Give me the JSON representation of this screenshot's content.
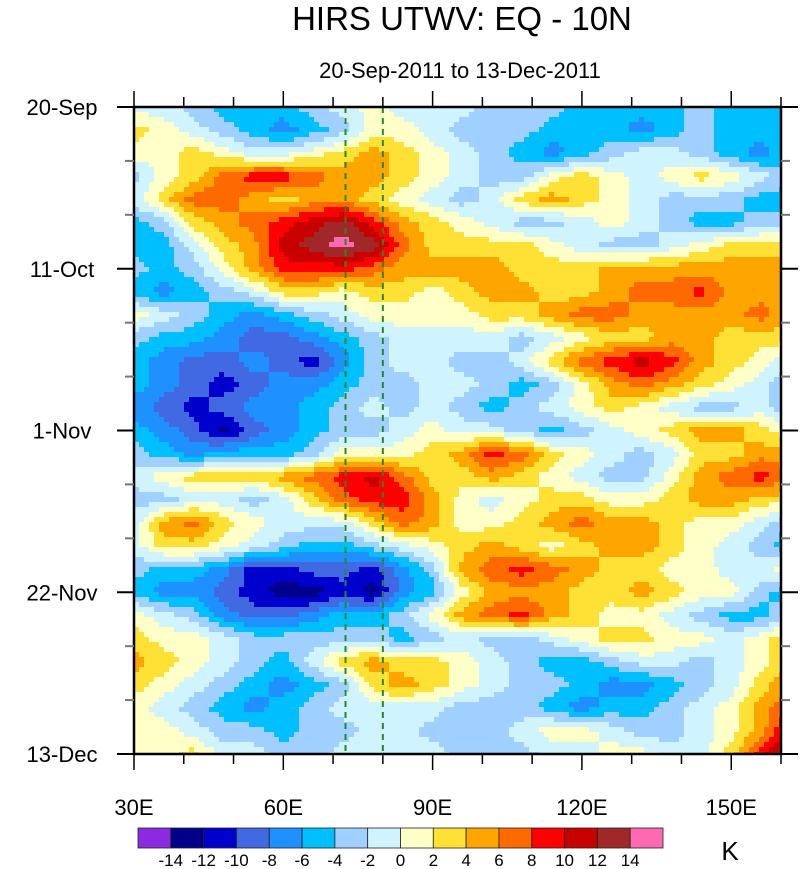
{
  "chart_data": {
    "type": "heatmap",
    "title": "HIRS UTWV: EQ - 10N",
    "subtitle": "20-Sep-2011 to 13-Dec-2011",
    "xlabel": "",
    "ylabel": "",
    "x_axis": {
      "range": [
        30,
        160
      ],
      "unit": "degrees east",
      "major_ticks": [
        30,
        60,
        90,
        120,
        150
      ],
      "tick_labels": [
        "30E",
        "60E",
        "90E",
        "120E",
        "150E"
      ],
      "minor_step": 10
    },
    "y_axis": {
      "range_days": [
        0,
        84
      ],
      "direction": "top-to-bottom",
      "major_ticks_days": [
        0,
        21,
        42,
        63,
        84
      ],
      "tick_labels": [
        "20-Sep",
        "11-Oct",
        "1-Nov",
        "22-Nov",
        "13-Dec"
      ],
      "minor_step_days": 7
    },
    "reference_lines": [
      {
        "lon": 72.5,
        "style": "dashed",
        "color": "#228B22"
      },
      {
        "lon": 80,
        "style": "dashed",
        "color": "#228B22"
      }
    ],
    "colorbar": {
      "placement": "bottom",
      "unit": "K",
      "levels": [
        -14,
        -12,
        -10,
        -8,
        -6,
        -4,
        -2,
        0,
        2,
        4,
        6,
        8,
        10,
        12,
        14
      ],
      "level_labels": [
        "-14",
        "-12",
        "-10",
        "-8",
        "-6",
        "-4",
        "-2",
        "0",
        "2",
        "4",
        "6",
        "8",
        "10",
        "12",
        "14"
      ],
      "colors": [
        "#8a2be2",
        "#00008b",
        "#0000cd",
        "#4169e1",
        "#1e90ff",
        "#00bfff",
        "#a0d0ff",
        "#d0f4ff",
        "#ffffc8",
        "#ffe135",
        "#ffa500",
        "#ff6a00",
        "#ff0000",
        "#c80000",
        "#a02828",
        "#ff69b4"
      ]
    },
    "grid": {
      "lons": [
        30,
        36,
        42,
        48,
        54,
        60,
        66,
        72,
        78,
        84,
        90,
        96,
        102,
        108,
        114,
        120,
        126,
        132,
        138,
        144,
        150,
        156,
        160
      ],
      "days": [
        0,
        3,
        6,
        9,
        12,
        15,
        18,
        21,
        24,
        27,
        30,
        33,
        36,
        39,
        42,
        45,
        48,
        51,
        54,
        57,
        60,
        63,
        66,
        69,
        72,
        75,
        78,
        81,
        84
      ],
      "values": [
        [
          -1,
          -1,
          -3,
          -5,
          -5,
          -5,
          -3,
          -1,
          1,
          -1,
          -1,
          -1,
          -3,
          -3,
          -3,
          -5,
          -5,
          -5,
          -5,
          -3,
          -5,
          -5,
          -5
        ],
        [
          3,
          1,
          -1,
          -3,
          -5,
          -7,
          -5,
          -3,
          1,
          1,
          -1,
          -3,
          -3,
          -3,
          -5,
          -5,
          -5,
          -7,
          -5,
          -3,
          -5,
          -5,
          -5
        ],
        [
          1,
          1,
          3,
          1,
          -1,
          -1,
          1,
          3,
          5,
          3,
          1,
          -1,
          -3,
          -5,
          -7,
          -5,
          -3,
          -1,
          -1,
          -3,
          -5,
          -7,
          -5
        ],
        [
          -3,
          1,
          3,
          7,
          9,
          9,
          7,
          5,
          5,
          3,
          1,
          -1,
          -3,
          -3,
          1,
          3,
          1,
          -1,
          1,
          3,
          1,
          -1,
          -3
        ],
        [
          -1,
          3,
          7,
          7,
          5,
          3,
          5,
          5,
          3,
          1,
          -1,
          -3,
          -1,
          3,
          5,
          3,
          1,
          -1,
          -3,
          -3,
          -3,
          -5,
          -5
        ],
        [
          -5,
          -3,
          3,
          5,
          7,
          9,
          11,
          13,
          9,
          5,
          3,
          1,
          -1,
          -3,
          -3,
          -1,
          1,
          -1,
          -3,
          -5,
          -5,
          -3,
          -3
        ],
        [
          -5,
          -5,
          -1,
          3,
          5,
          11,
          13,
          15,
          13,
          7,
          3,
          3,
          3,
          3,
          1,
          -1,
          -3,
          -3,
          -1,
          1,
          3,
          3,
          3
        ],
        [
          -3,
          -5,
          -3,
          1,
          5,
          9,
          9,
          9,
          7,
          5,
          5,
          5,
          5,
          3,
          3,
          3,
          5,
          5,
          5,
          5,
          5,
          5,
          5
        ],
        [
          -5,
          -7,
          -5,
          -3,
          -1,
          3,
          3,
          1,
          3,
          3,
          1,
          3,
          5,
          5,
          3,
          3,
          5,
          7,
          7,
          9,
          5,
          5,
          5
        ],
        [
          1,
          -1,
          -3,
          -5,
          -7,
          -5,
          -3,
          -1,
          1,
          1,
          1,
          1,
          3,
          3,
          5,
          7,
          7,
          5,
          5,
          5,
          5,
          7,
          5
        ],
        [
          -3,
          -5,
          -5,
          -7,
          -9,
          -9,
          -7,
          -5,
          -3,
          -1,
          -1,
          -1,
          -1,
          -3,
          -1,
          1,
          3,
          3,
          5,
          5,
          3,
          3,
          3
        ],
        [
          -5,
          -7,
          -9,
          -9,
          -7,
          -9,
          -11,
          -7,
          -3,
          -1,
          -1,
          -3,
          -3,
          -1,
          3,
          7,
          9,
          11,
          9,
          5,
          3,
          1,
          -1
        ],
        [
          -5,
          -7,
          -9,
          -11,
          -9,
          -7,
          -7,
          -5,
          -3,
          -3,
          -1,
          -1,
          -3,
          -5,
          -3,
          1,
          5,
          7,
          5,
          3,
          1,
          -1,
          -3
        ],
        [
          -7,
          -9,
          -11,
          -9,
          -7,
          -7,
          -5,
          -3,
          -1,
          -3,
          -1,
          -3,
          -5,
          -3,
          -1,
          1,
          3,
          1,
          -1,
          -3,
          -3,
          -1,
          -3
        ],
        [
          -5,
          -7,
          -9,
          -13,
          -9,
          -7,
          -5,
          -3,
          -3,
          -1,
          1,
          -1,
          -1,
          -3,
          -5,
          -3,
          -1,
          1,
          3,
          5,
          5,
          3,
          1
        ],
        [
          -3,
          -5,
          -7,
          -5,
          -5,
          -5,
          -3,
          1,
          1,
          1,
          3,
          5,
          9,
          7,
          3,
          1,
          -1,
          -3,
          -1,
          3,
          3,
          5,
          5
        ],
        [
          -1,
          1,
          3,
          3,
          3,
          5,
          7,
          9,
          11,
          7,
          3,
          3,
          5,
          3,
          1,
          -1,
          -3,
          -3,
          1,
          5,
          7,
          9,
          7
        ],
        [
          -3,
          -3,
          -1,
          -1,
          -3,
          -1,
          3,
          7,
          9,
          9,
          5,
          1,
          -1,
          1,
          3,
          3,
          1,
          1,
          3,
          5,
          5,
          3,
          3
        ],
        [
          -1,
          5,
          7,
          3,
          1,
          -1,
          -1,
          -1,
          3,
          7,
          5,
          1,
          1,
          3,
          5,
          7,
          5,
          5,
          3,
          1,
          1,
          -1,
          -3
        ],
        [
          -1,
          3,
          3,
          1,
          -1,
          -3,
          -5,
          -5,
          -3,
          -1,
          1,
          3,
          5,
          3,
          1,
          3,
          5,
          5,
          3,
          1,
          -1,
          -3,
          -5
        ],
        [
          -3,
          -5,
          -5,
          -7,
          -11,
          -11,
          -9,
          -9,
          -11,
          -7,
          -3,
          5,
          7,
          9,
          7,
          5,
          3,
          3,
          1,
          1,
          -1,
          -1,
          1
        ],
        [
          -5,
          -7,
          -7,
          -9,
          -11,
          -13,
          -13,
          -11,
          -13,
          -7,
          -5,
          1,
          5,
          5,
          5,
          3,
          3,
          5,
          3,
          1,
          1,
          -3,
          -5
        ],
        [
          1,
          -1,
          -3,
          -7,
          -9,
          -9,
          -7,
          -5,
          -5,
          -3,
          1,
          5,
          7,
          9,
          5,
          3,
          1,
          1,
          -1,
          -3,
          -5,
          -5,
          -3
        ],
        [
          3,
          1,
          1,
          -1,
          -3,
          -3,
          -3,
          -3,
          -3,
          -5,
          -3,
          -1,
          -3,
          -3,
          -1,
          1,
          3,
          3,
          1,
          1,
          -1,
          1,
          3
        ],
        [
          5,
          3,
          1,
          -1,
          -3,
          -5,
          -1,
          3,
          5,
          3,
          3,
          1,
          -1,
          -3,
          -5,
          -5,
          -3,
          -1,
          -1,
          -3,
          -1,
          1,
          3
        ],
        [
          3,
          1,
          -1,
          -3,
          -5,
          -7,
          -5,
          -3,
          3,
          5,
          3,
          1,
          -1,
          -3,
          -3,
          -5,
          -7,
          -7,
          -5,
          -3,
          -1,
          3,
          5
        ],
        [
          1,
          -1,
          -3,
          -5,
          -7,
          -5,
          -3,
          -1,
          -1,
          -1,
          -1,
          -3,
          -3,
          -3,
          -5,
          -7,
          -5,
          -5,
          -3,
          -1,
          1,
          5,
          7
        ],
        [
          1,
          1,
          -1,
          -3,
          -3,
          -5,
          -3,
          -3,
          -1,
          -1,
          -3,
          -3,
          -3,
          -1,
          1,
          1,
          -1,
          -3,
          -3,
          -1,
          1,
          5,
          9
        ],
        [
          1,
          1,
          3,
          -1,
          -1,
          -3,
          -3,
          -1,
          -1,
          -1,
          -1,
          -3,
          -3,
          -3,
          -1,
          -1,
          1,
          1,
          -1,
          -1,
          3,
          9,
          13
        ]
      ]
    }
  }
}
